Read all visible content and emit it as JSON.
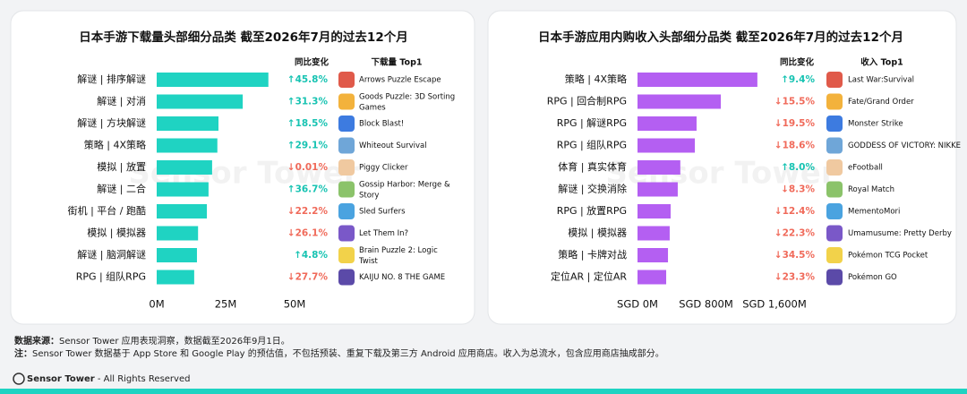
{
  "chart_data": [
    {
      "type": "bar",
      "orientation": "horizontal",
      "title": "日本手游下载量头部细分品类 截至2026年7月的过去12个月",
      "categories": [
        "解谜 | 排序解谜",
        "解谜 | 对消",
        "解谜 | 方块解谜",
        "策略 | 4X策略",
        "模拟 | 放置",
        "解谜 | 二合",
        "街机 | 平台 / 跑酷",
        "模拟 | 模拟器",
        "解谜 | 脑洞解谜",
        "RPG | 组队RPG"
      ],
      "values": [
        40.5,
        31.2,
        22.4,
        22,
        20.1,
        18.8,
        18.2,
        15,
        14.6,
        13.6
      ],
      "color": "#1fd3c2",
      "xlim": [
        0,
        50
      ],
      "xticks": [
        {
          "value": 0,
          "label": "0M"
        },
        {
          "value": 25,
          "label": "25M"
        },
        {
          "value": 50,
          "label": "50M"
        }
      ],
      "change_header": "同比变化",
      "changes": [
        "↑45.8%",
        "↑31.3%",
        "↑18.5%",
        "↑29.1%",
        "↓0.01%",
        "↑36.7%",
        "↓22.2%",
        "↓26.1%",
        "↑4.8%",
        "↓27.7%"
      ],
      "top_header": "下载量 Top1",
      "top_apps": [
        "Arrows  Puzzle Escape",
        "Goods Puzzle: 3D Sorting Games",
        "Block Blast!",
        "Whiteout Survival",
        "Piggy Clicker",
        "Gossip Harbor: Merge & Story",
        "Sled Surfers",
        "Let Them In?",
        "Brain Puzzle 2: Logic Twist",
        "KAIJU NO. 8 THE GAME"
      ]
    },
    {
      "type": "bar",
      "orientation": "horizontal",
      "title": "日本手游应用内购收入头部细分品类 截至2026年7月的过去12个月",
      "categories": [
        "策略 | 4X策略",
        "RPG | 回合制RPG",
        "RPG | 解谜RPG",
        "RPG | 组队RPG",
        "体育 | 真实体育",
        "解谜 | 交换消除",
        "RPG | 放置RPG",
        "模拟 | 模拟器",
        "策略 | 卡牌对战",
        "定位AR | 定位AR"
      ],
      "values": [
        1400,
        973,
        690,
        670,
        500,
        470,
        387,
        376,
        356,
        335
      ],
      "color": "#b45ff2",
      "xlim": [
        0,
        1600
      ],
      "xticks": [
        {
          "value": 0,
          "label": "SGD 0M"
        },
        {
          "value": 800,
          "label": "SGD 800M"
        },
        {
          "value": 1600,
          "label": "SGD 1,600M"
        }
      ],
      "change_header": "同比变化",
      "changes": [
        "↑9.4%",
        "↓15.5%",
        "↓19.5%",
        "↓18.6%",
        "↑8.0%",
        "↓8.3%",
        "↓12.4%",
        "↓22.3%",
        "↓34.5%",
        "↓23.3%"
      ],
      "top_header": "收入 Top1",
      "top_apps": [
        "Last War:Survival",
        "Fate/Grand Order",
        "Monster Strike",
        "GODDESS OF VICTORY: NIKKE",
        "eFootball",
        "Royal Match",
        "MementoMori",
        "Umamusume: Pretty Derby",
        "Pokémon TCG Pocket",
        "Pokémon GO"
      ]
    }
  ],
  "watermark": "Sensor Tower",
  "footer": {
    "source_label": "数据来源：",
    "source": "Sensor Tower 应用表现洞察，数据截至2026年9月1日。",
    "note_label": "注：",
    "note": "Sensor Tower 数据基于 App Store 和 Google Play 的预估值，不包括预装、重复下载及第三方 Android 应用商店。收入为总流水，包含应用商店抽成部分。",
    "brand": "Sensor Tower",
    "rights": " - All Rights Reserved"
  }
}
